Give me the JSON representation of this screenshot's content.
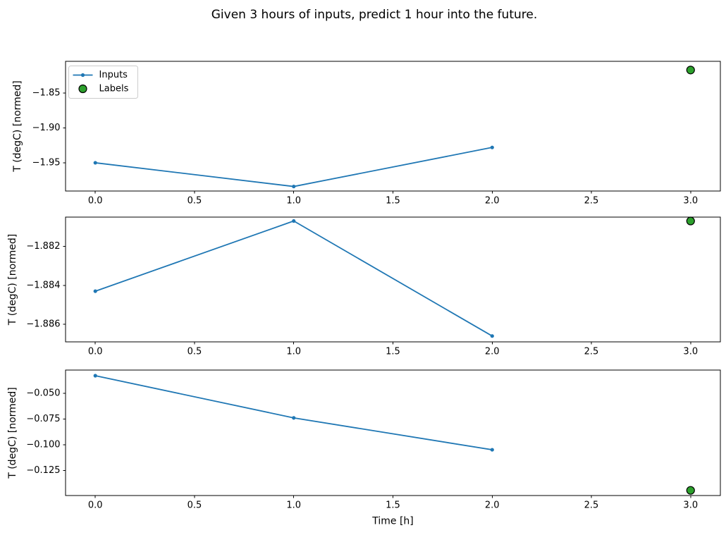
{
  "figure": {
    "title": "Given 3 hours of inputs, predict 1 hour into the future.",
    "background": "#ffffff"
  },
  "colors": {
    "inputs_line": "#1f77b4",
    "labels_fill": "#2ca02c",
    "labels_edge": "#000000",
    "axis": "#000000",
    "text": "#000000",
    "legend_border": "#cccccc",
    "legend_bg": "#ffffff"
  },
  "legend": {
    "position": "upper left",
    "items": [
      {
        "label": "Inputs",
        "marker": "line-dot",
        "color": "#1f77b4"
      },
      {
        "label": "Labels",
        "marker": "circle",
        "color": "#2ca02c"
      }
    ]
  },
  "chart_data": [
    {
      "type": "line",
      "title": "",
      "xlabel": "",
      "ylabel": "T (degC) [normed]",
      "xlim": [
        -0.15,
        3.15
      ],
      "ylim": [
        -1.9905,
        -1.8045
      ],
      "x_ticks": [
        0.0,
        0.5,
        1.0,
        1.5,
        2.0,
        2.5,
        3.0
      ],
      "x_tick_labels": [
        "0.0",
        "0.5",
        "1.0",
        "1.5",
        "2.0",
        "2.5",
        "3.0"
      ],
      "y_ticks": [
        -1.85,
        -1.9,
        -1.95
      ],
      "y_tick_labels": [
        "−1.85",
        "−1.90",
        "−1.95"
      ],
      "legend_visible": true,
      "grid": false,
      "series": [
        {
          "name": "Inputs",
          "type": "line",
          "x": [
            0,
            1,
            2
          ],
          "y": [
            -1.95,
            -1.984,
            -1.928
          ]
        },
        {
          "name": "Labels",
          "type": "scatter",
          "x": [
            3
          ],
          "y": [
            -1.817
          ]
        }
      ]
    },
    {
      "type": "line",
      "title": "",
      "xlabel": "",
      "ylabel": "T (degC) [normed]",
      "xlim": [
        -0.15,
        3.15
      ],
      "ylim": [
        -1.8869,
        -1.8805
      ],
      "x_ticks": [
        0.0,
        0.5,
        1.0,
        1.5,
        2.0,
        2.5,
        3.0
      ],
      "x_tick_labels": [
        "0.0",
        "0.5",
        "1.0",
        "1.5",
        "2.0",
        "2.5",
        "3.0"
      ],
      "y_ticks": [
        -1.882,
        -1.884,
        -1.886
      ],
      "y_tick_labels": [
        "−1.882",
        "−1.884",
        "−1.886"
      ],
      "legend_visible": false,
      "grid": false,
      "series": [
        {
          "name": "Inputs",
          "type": "line",
          "x": [
            0,
            1,
            2
          ],
          "y": [
            -1.8843,
            -1.8807,
            -1.8866
          ]
        },
        {
          "name": "Labels",
          "type": "scatter",
          "x": [
            3
          ],
          "y": [
            -1.8807
          ]
        }
      ]
    },
    {
      "type": "line",
      "title": "",
      "xlabel": "Time [h]",
      "ylabel": "T (degC) [normed]",
      "xlim": [
        -0.15,
        3.15
      ],
      "ylim": [
        -0.1495,
        -0.0275
      ],
      "x_ticks": [
        0.0,
        0.5,
        1.0,
        1.5,
        2.0,
        2.5,
        3.0
      ],
      "x_tick_labels": [
        "0.0",
        "0.5",
        "1.0",
        "1.5",
        "2.0",
        "2.5",
        "3.0"
      ],
      "y_ticks": [
        -0.05,
        -0.075,
        -0.1,
        -0.125
      ],
      "y_tick_labels": [
        "−0.050",
        "−0.075",
        "−0.100",
        "−0.125"
      ],
      "legend_visible": false,
      "grid": false,
      "series": [
        {
          "name": "Inputs",
          "type": "line",
          "x": [
            0,
            1,
            2
          ],
          "y": [
            -0.033,
            -0.074,
            -0.105
          ]
        },
        {
          "name": "Labels",
          "type": "scatter",
          "x": [
            3
          ],
          "y": [
            -0.1445
          ]
        }
      ]
    }
  ]
}
